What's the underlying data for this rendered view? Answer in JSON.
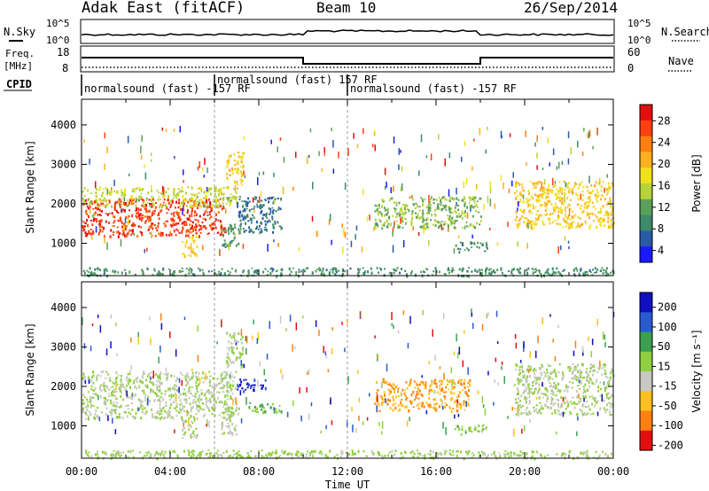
{
  "header": {
    "title": "Adak East (fitACF)",
    "beam": "Beam 10",
    "date": "26/Sep/2014"
  },
  "strip_labels": {
    "nsky": "N.Sky",
    "nsky_ticks": [
      "10^5",
      "10^0"
    ],
    "nsearch": "N.Search",
    "nsearch_ticks": [
      "10^5",
      "10^0"
    ],
    "freq": "Freq.",
    "freq_unit": "[MHz]",
    "freq_ticks": [
      "18",
      "8"
    ],
    "nave": "Nave",
    "nave_ticks": [
      "60",
      "0"
    ],
    "cpid": "CPID"
  },
  "cpid_segments": [
    {
      "label": "normalsound (fast) -157 RF",
      "start_hour": 0,
      "end_hour": 6.0
    },
    {
      "label": "normalsound (fast) 157 RF",
      "start_hour": 6.0,
      "end_hour": 12.0
    },
    {
      "label": "normalsound (fast) -157 RF",
      "start_hour": 12.0,
      "end_hour": 24.0
    }
  ],
  "frequency_trace": [
    {
      "start_hour": 0,
      "end_hour": 10.0,
      "freq_mhz": 14
    },
    {
      "start_hour": 10.0,
      "end_hour": 18.0,
      "freq_mhz": 10.5
    },
    {
      "start_hour": 18.0,
      "end_hour": 24.0,
      "freq_mhz": 14
    }
  ],
  "x_axis": {
    "label": "Time UT",
    "ticks": [
      "00:00",
      "04:00",
      "08:00",
      "12:00",
      "16:00",
      "20:00",
      "00:00"
    ],
    "range_hours": [
      0,
      24
    ]
  },
  "power_panel": {
    "ylabel": "Slant Range [km]",
    "yticks": [
      "4000",
      "3000",
      "2000",
      "1000"
    ],
    "colorbar_label": "Power [dB]",
    "colorbar_ticks": [
      "28",
      "24",
      "20",
      "16",
      "12",
      "8",
      "4"
    ],
    "colors": [
      "#1a1aff",
      "#2a5aa8",
      "#3f8a6a",
      "#5aa05a",
      "#b8d23a",
      "#f0e020",
      "#ffb020",
      "#ff8010",
      "#ff4010",
      "#e01010"
    ]
  },
  "velocity_panel": {
    "ylabel": "Slant Range [km]",
    "yticks": [
      "4000",
      "3000",
      "2000",
      "1000"
    ],
    "colorbar_label": "Velocity [m s⁻¹]",
    "colorbar_ticks": [
      "200",
      "100",
      "50",
      "15",
      "-15",
      "-50",
      "-100",
      "-200"
    ],
    "colors": [
      "#1010c0",
      "#2a5ad0",
      "#3aa050",
      "#90d040",
      "#c8c8c0",
      "#ffc020",
      "#ff8010",
      "#e01010"
    ]
  },
  "chart_data": [
    {
      "type": "heatmap",
      "title": "Power",
      "xlabel": "Time UT",
      "ylabel": "Slant Range [km]",
      "xlim": [
        0,
        24
      ],
      "ylim": [
        180,
        4650
      ],
      "zlabel": "Power [dB]",
      "zlim": [
        0,
        30
      ],
      "regions": [
        {
          "t0": 0.0,
          "t1": 6.5,
          "r0": 1200,
          "r1": 2150,
          "value": 26
        },
        {
          "t0": 0.0,
          "t1": 7.0,
          "r0": 1950,
          "r1": 2450,
          "value": 14
        },
        {
          "t0": 6.5,
          "t1": 7.3,
          "r0": 2500,
          "r1": 3400,
          "value": 18
        },
        {
          "t0": 7.0,
          "t1": 9.0,
          "r0": 1300,
          "r1": 2200,
          "value": 6
        },
        {
          "t0": 4.5,
          "t1": 5.2,
          "r0": 700,
          "r1": 1200,
          "value": 18
        },
        {
          "t0": 6.3,
          "t1": 7.1,
          "r0": 900,
          "r1": 1500,
          "value": 10
        },
        {
          "t0": 13.2,
          "t1": 18.0,
          "r0": 1400,
          "r1": 2200,
          "value": 12
        },
        {
          "t0": 16.8,
          "t1": 18.3,
          "r0": 800,
          "r1": 1050,
          "value": 8
        },
        {
          "t0": 19.5,
          "t1": 24.0,
          "r0": 1400,
          "r1": 2600,
          "value": 18
        },
        {
          "t0": 0.0,
          "t1": 24.0,
          "r0": 200,
          "r1": 400,
          "value": 8
        }
      ]
    },
    {
      "type": "heatmap",
      "title": "Velocity",
      "xlabel": "Time UT",
      "ylabel": "Slant Range [km]",
      "xlim": [
        0,
        24
      ],
      "ylim": [
        180,
        4650
      ],
      "zlabel": "Velocity [m s⁻¹]",
      "zlim": [
        -250,
        250
      ],
      "regions": [
        {
          "t0": 0.0,
          "t1": 7.0,
          "r0": 1200,
          "r1": 2400,
          "value": 0
        },
        {
          "t0": 6.5,
          "t1": 7.3,
          "r0": 2500,
          "r1": 3400,
          "value": 0
        },
        {
          "t0": 7.0,
          "t1": 8.3,
          "r0": 1900,
          "r1": 2200,
          "value": 200
        },
        {
          "t0": 7.5,
          "t1": 9.0,
          "r0": 1350,
          "r1": 1600,
          "value": 60
        },
        {
          "t0": 4.5,
          "t1": 5.2,
          "r0": 700,
          "r1": 1200,
          "value": 0
        },
        {
          "t0": 6.3,
          "t1": 7.1,
          "r0": 800,
          "r1": 1500,
          "value": 0
        },
        {
          "t0": 13.2,
          "t1": 17.5,
          "r0": 1400,
          "r1": 2200,
          "value": -120
        },
        {
          "t0": 16.8,
          "t1": 18.3,
          "r0": 800,
          "r1": 1050,
          "value": 30
        },
        {
          "t0": 19.5,
          "t1": 24.0,
          "r0": 1300,
          "r1": 2600,
          "value": 0
        },
        {
          "t0": 0.0,
          "t1": 24.0,
          "r0": 200,
          "r1": 400,
          "value": 20
        }
      ]
    }
  ]
}
